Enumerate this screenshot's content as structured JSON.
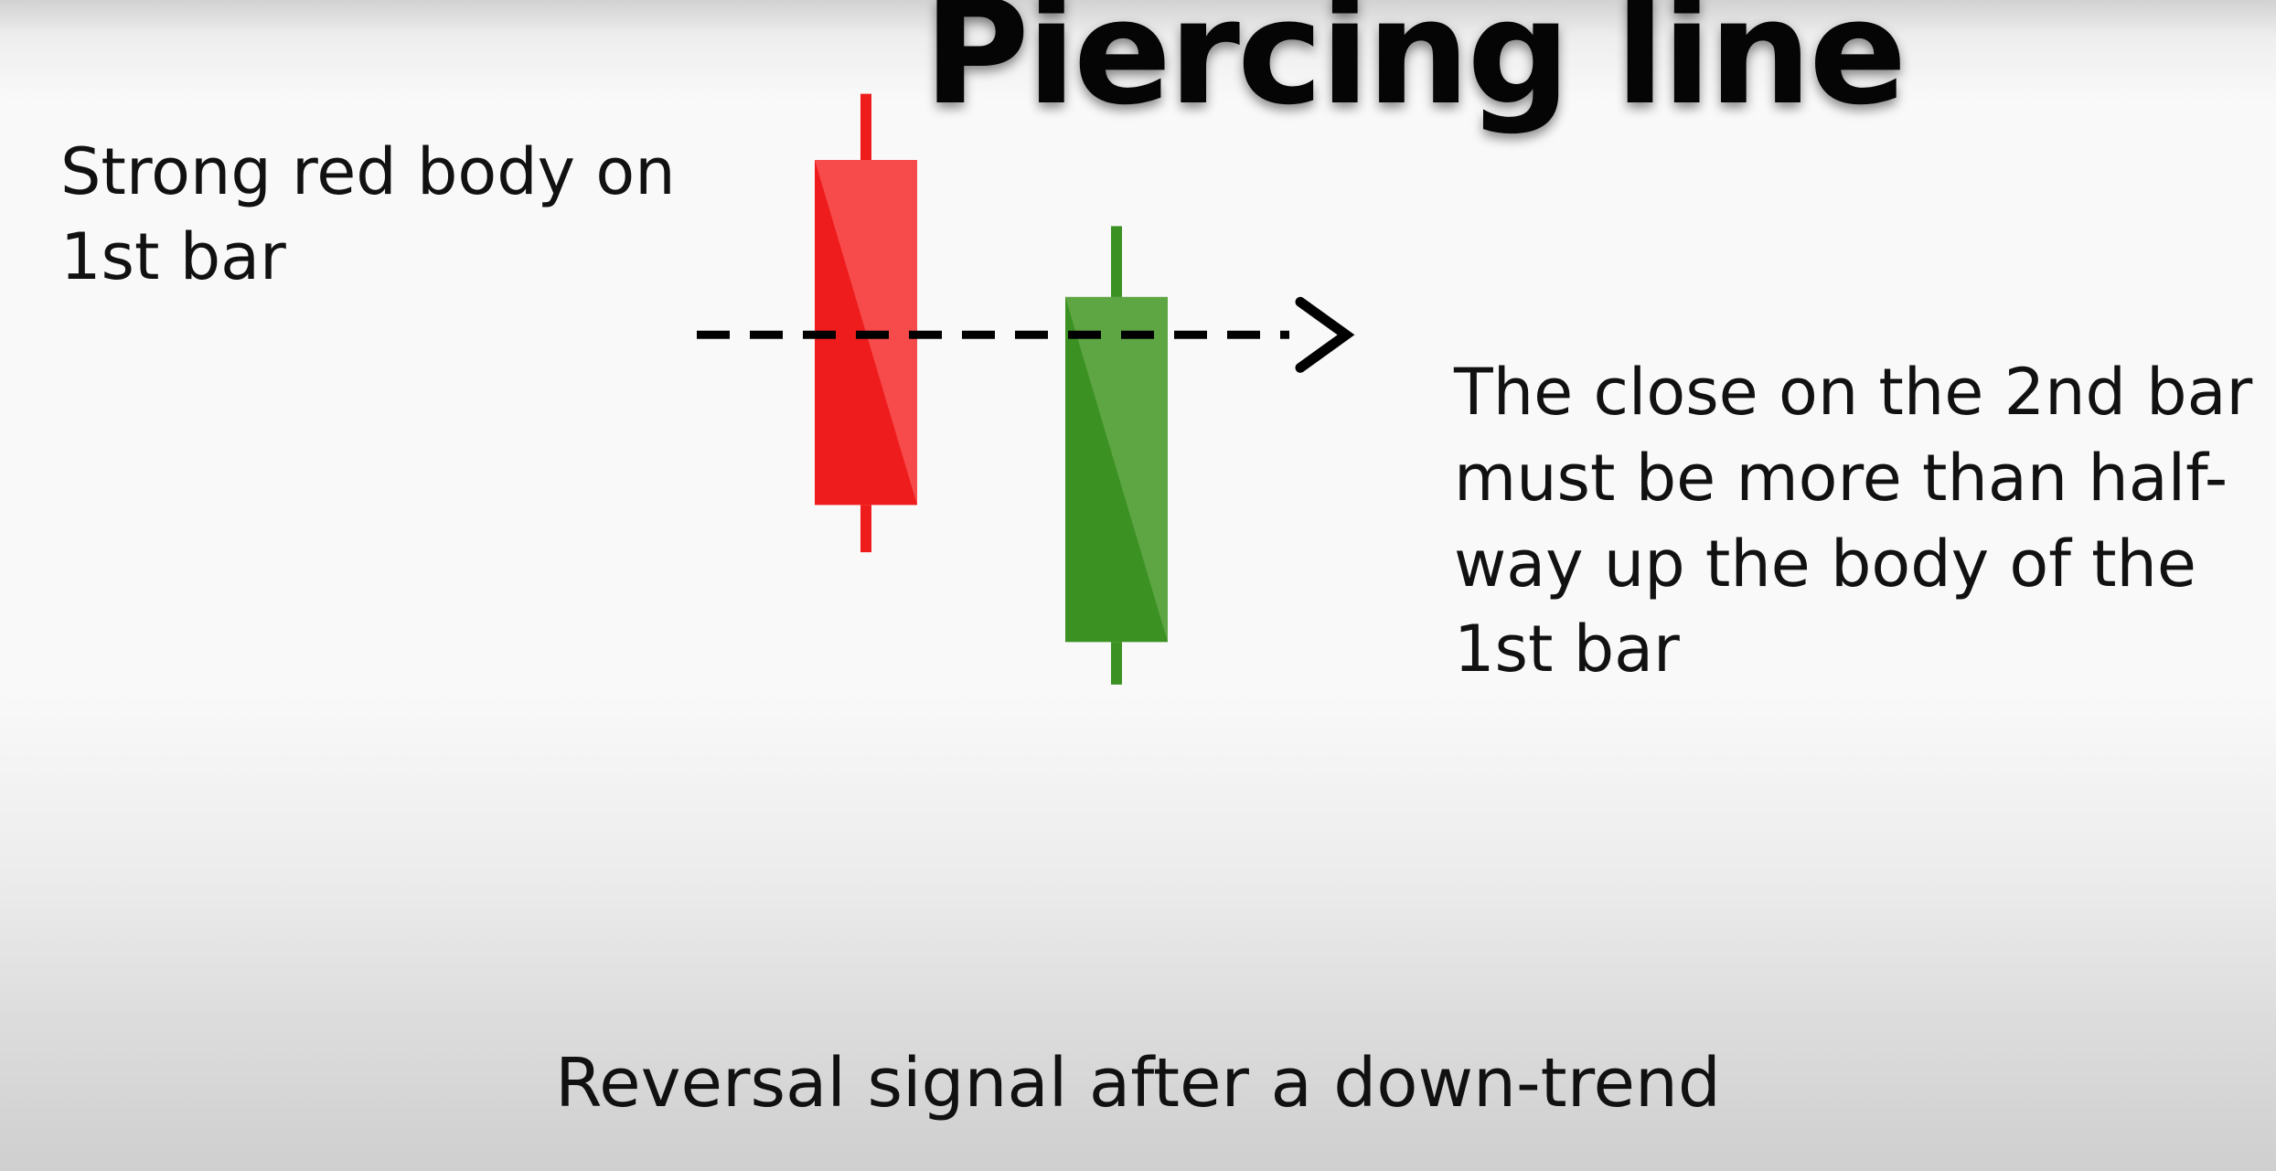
{
  "title": "Piercing line",
  "captions": {
    "first_bar": "Strong red body on 1st bar",
    "close_note": "The close on the 2nd bar must be more than half-way up the body of the 1st bar",
    "footer": "Reversal signal after a down-trend"
  },
  "colors": {
    "bearish_body": "#ee1c1c",
    "bearish_highlight": "#f74a4a",
    "bullish_body": "#3b9122",
    "bullish_highlight": "#5ea544",
    "dashed_line": "#000000"
  },
  "candles": [
    {
      "name": "first-bar",
      "direction": "bearish",
      "open": 100,
      "close": 27,
      "high": 114,
      "low": 17
    },
    {
      "name": "second-bar",
      "direction": "bullish",
      "open": -2,
      "close": 71,
      "high": 86,
      "low": -11
    }
  ],
  "close_level": 63,
  "icons": {
    "arrow": "chevron-right-icon"
  }
}
